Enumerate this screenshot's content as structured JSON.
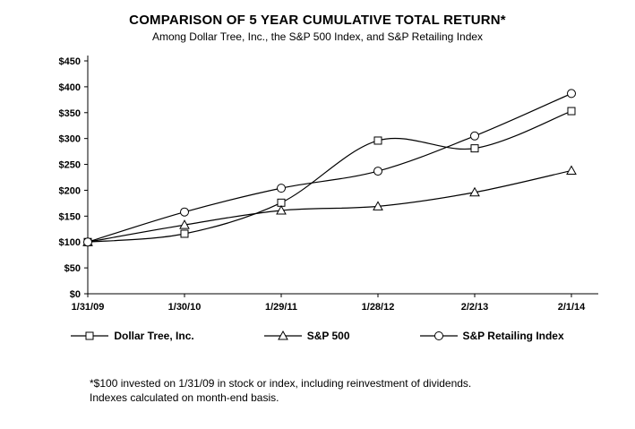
{
  "title": "COMPARISON OF 5 YEAR CUMULATIVE TOTAL RETURN*",
  "subtitle": "Among Dollar Tree, Inc., the S&P 500 Index, and S&P Retailing Index",
  "footnote": {
    "line1": "*$100 invested on 1/31/09 in stock or index, including reinvestment of dividends.",
    "line2": "Indexes calculated on month-end basis."
  },
  "chart_data": {
    "type": "line",
    "categories": [
      "1/31/09",
      "1/30/10",
      "1/29/11",
      "1/28/12",
      "2/2/13",
      "2/1/14"
    ],
    "series": [
      {
        "name": "Dollar Tree, Inc.",
        "marker": "square",
        "values": [
          100,
          116,
          176,
          296,
          281,
          353
        ]
      },
      {
        "name": "S&P 500",
        "marker": "triangle",
        "values": [
          100,
          133,
          161,
          169,
          196,
          238
        ]
      },
      {
        "name": "S&P Retailing Index",
        "marker": "circle",
        "values": [
          100,
          158,
          204,
          237,
          305,
          387
        ]
      }
    ],
    "ylim": [
      0,
      450
    ],
    "ytick_step": 50,
    "ytick_prefix": "$",
    "grid": false,
    "legend_position": "bottom",
    "line_color": "#000000",
    "marker_fill": "#ffffff"
  }
}
